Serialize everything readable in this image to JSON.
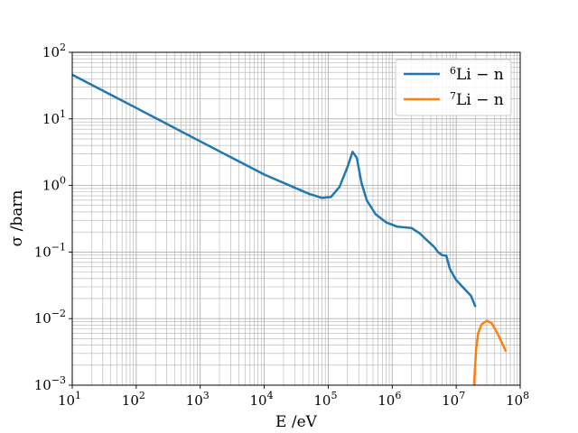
{
  "chart_data": {
    "type": "line",
    "xlabel": "E /eV",
    "ylabel": "σ /barn",
    "xscale": "log",
    "yscale": "log",
    "xlim": [
      10,
      100000000
    ],
    "ylim": [
      0.001,
      100
    ],
    "grid": true,
    "grid_minor": true,
    "legend_position": "top-right",
    "x_ticks": [
      {
        "base": "10",
        "exp": "1"
      },
      {
        "base": "10",
        "exp": "2"
      },
      {
        "base": "10",
        "exp": "3"
      },
      {
        "base": "10",
        "exp": "4"
      },
      {
        "base": "10",
        "exp": "5"
      },
      {
        "base": "10",
        "exp": "6"
      },
      {
        "base": "10",
        "exp": "7"
      },
      {
        "base": "10",
        "exp": "8"
      }
    ],
    "y_ticks": [
      {
        "base": "10",
        "exp": "−3"
      },
      {
        "base": "10",
        "exp": "−2"
      },
      {
        "base": "10",
        "exp": "−1"
      },
      {
        "base": "10",
        "exp": "0"
      },
      {
        "base": "10",
        "exp": "1"
      },
      {
        "base": "10",
        "exp": "2"
      }
    ],
    "series": [
      {
        "name_sup": "6",
        "name_main": "Li − n",
        "color": "#1f77b4",
        "points": [
          [
            10,
            46
          ],
          [
            100,
            14.6
          ],
          [
            1000,
            4.6
          ],
          [
            10000,
            1.46
          ],
          [
            50000,
            0.75
          ],
          [
            80000,
            0.65
          ],
          [
            110000,
            0.67
          ],
          [
            150000,
            0.95
          ],
          [
            200000,
            1.9
          ],
          [
            240000,
            3.2
          ],
          [
            280000,
            2.6
          ],
          [
            330000,
            1.1
          ],
          [
            400000,
            0.6
          ],
          [
            550000,
            0.37
          ],
          [
            800000,
            0.28
          ],
          [
            1200000,
            0.24
          ],
          [
            2000000,
            0.23
          ],
          [
            2700000,
            0.19
          ],
          [
            3500000,
            0.15
          ],
          [
            4500000,
            0.12
          ],
          [
            5200000,
            0.1
          ],
          [
            6000000,
            0.09
          ],
          [
            7000000,
            0.088
          ],
          [
            8000000,
            0.055
          ],
          [
            10000000,
            0.038
          ],
          [
            13000000,
            0.029
          ],
          [
            17000000,
            0.022
          ],
          [
            20000000,
            0.015
          ]
        ]
      },
      {
        "name_sup": "7",
        "name_main": "Li − n",
        "color": "#ff7f0e",
        "points": [
          [
            19000000,
            0.001
          ],
          [
            20500000,
            0.0035
          ],
          [
            22000000,
            0.006
          ],
          [
            25000000,
            0.0082
          ],
          [
            30000000,
            0.0093
          ],
          [
            36000000,
            0.0085
          ],
          [
            45000000,
            0.0058
          ],
          [
            60000000,
            0.0032
          ]
        ]
      }
    ]
  }
}
